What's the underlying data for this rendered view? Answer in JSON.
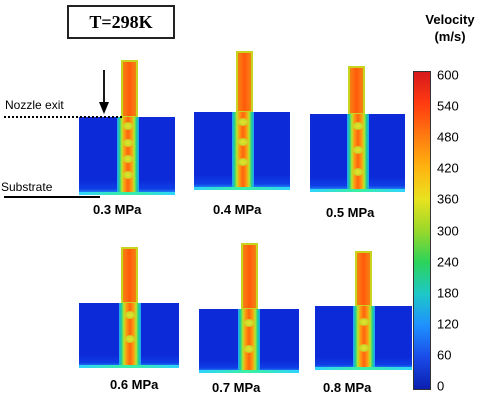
{
  "title": "T=298K",
  "annotations": {
    "nozzle_exit": "Nozzle exit",
    "substrate": "Substrate"
  },
  "panels": [
    {
      "pressure": "0.3 MPa"
    },
    {
      "pressure": "0.4 MPa"
    },
    {
      "pressure": "0.5 MPa"
    },
    {
      "pressure": "0.6 MPa"
    },
    {
      "pressure": "0.7 MPa"
    },
    {
      "pressure": "0.8 MPa"
    }
  ],
  "colorbar": {
    "title_line1": "Velocity",
    "title_line2": "(m/s)",
    "ticks": [
      "600",
      "540",
      "480",
      "420",
      "360",
      "300",
      "240",
      "180",
      "120",
      "60",
      "0"
    ],
    "stops": [
      "#d7191c",
      "#ff3b10",
      "#ff7a10",
      "#ffb30f",
      "#e9e21f",
      "#9bd82a",
      "#2bd35a",
      "#1ec8c8",
      "#1e90ff",
      "#1a4be8",
      "#0b1fb0"
    ]
  }
}
